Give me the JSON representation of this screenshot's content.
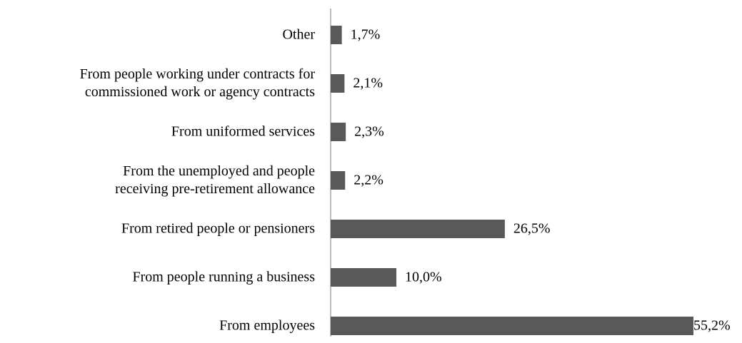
{
  "chart_data": {
    "type": "bar",
    "orientation": "horizontal",
    "categories": [
      [
        "Other"
      ],
      [
        "From people working under contracts for",
        "commissioned work or agency contracts"
      ],
      [
        "From uniformed services"
      ],
      [
        "From the unemployed and people",
        "receiving pre-retirement allowance"
      ],
      [
        "From retired people or pensioners"
      ],
      [
        "From people running a business"
      ],
      [
        "From employees"
      ]
    ],
    "values": [
      1.7,
      2.1,
      2.3,
      2.2,
      26.5,
      10.0,
      55.2
    ],
    "value_labels": [
      "1,7%",
      "2,1%",
      "2,3%",
      "2,2%",
      "26,5%",
      "10,0%",
      "55,2%"
    ],
    "color": "#595959"
  }
}
